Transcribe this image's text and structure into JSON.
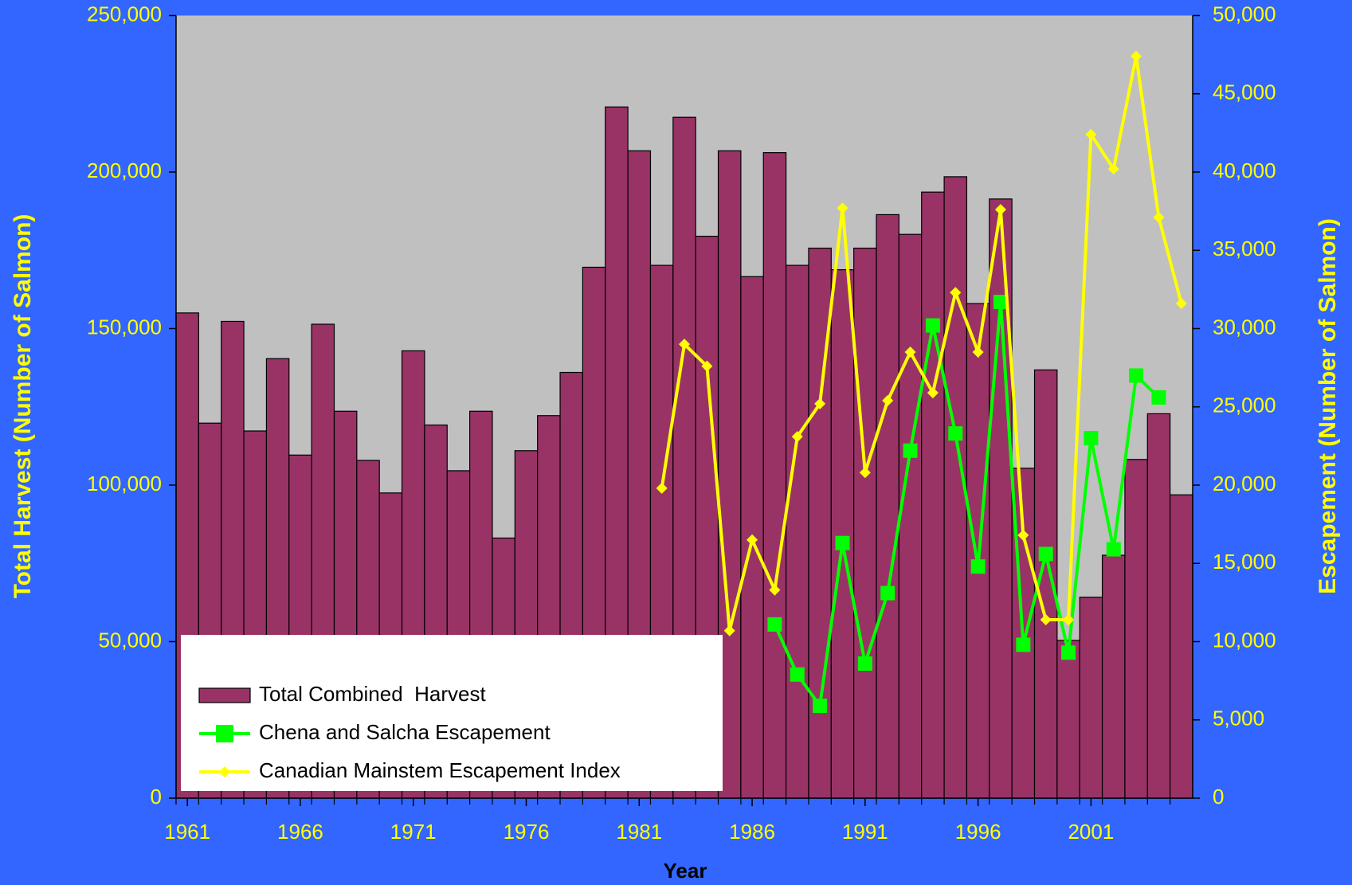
{
  "chart_data": {
    "type": "bar_line",
    "xlabel": "Year",
    "ylabel": "Total Harvest (Number of Salmon)",
    "y2label": "Escapement (Number of Salmon)",
    "x": [
      1961,
      1962,
      1963,
      1964,
      1965,
      1966,
      1967,
      1968,
      1969,
      1970,
      1971,
      1972,
      1973,
      1974,
      1975,
      1976,
      1977,
      1978,
      1979,
      1980,
      1981,
      1982,
      1983,
      1984,
      1985,
      1986,
      1987,
      1988,
      1989,
      1990,
      1991,
      1992,
      1993,
      1994,
      1995,
      1996,
      1997,
      1998,
      1999,
      2000,
      2001,
      2002,
      2003,
      2004,
      2005
    ],
    "xlim": [
      1960.5,
      2005.5
    ],
    "xticks": [
      1961,
      1966,
      1971,
      1976,
      1981,
      1986,
      1991,
      1996,
      2001
    ],
    "ylim": [
      0,
      250000
    ],
    "yticks": [
      0,
      {
        "value": 50000,
        "label": "50,000"
      },
      {
        "value": 100000,
        "label": "100,000"
      },
      {
        "value": 150000,
        "label": "150,000"
      },
      {
        "value": 200000,
        "label": "200,000"
      },
      {
        "value": 250000,
        "label": "250,000"
      }
    ],
    "y2lim": [
      0,
      50000
    ],
    "y2ticks": [
      0,
      {
        "value": 5000,
        "label": "5,000"
      },
      {
        "value": 10000,
        "label": "10,000"
      },
      {
        "value": 15000,
        "label": "15,000"
      },
      {
        "value": 20000,
        "label": "20,000"
      },
      {
        "value": 25000,
        "label": "25,000"
      },
      {
        "value": 30000,
        "label": "30,000"
      },
      {
        "value": 35000,
        "label": "35,000"
      },
      {
        "value": 40000,
        "label": "40,000"
      },
      {
        "value": 45000,
        "label": "45,000"
      },
      {
        "value": 50000,
        "label": "50,000"
      }
    ],
    "legend": "lower left",
    "series": [
      {
        "name": "Total Combined  Harvest",
        "kind": "bar",
        "axis": "y",
        "color": "#993366",
        "values": [
          155000,
          119800,
          152300,
          117300,
          140400,
          109600,
          151400,
          123600,
          107900,
          97500,
          142900,
          119200,
          104600,
          123600,
          83100,
          111000,
          122200,
          136000,
          169600,
          220800,
          206800,
          170200,
          217500,
          179500,
          206800,
          166600,
          206200,
          170200,
          175700,
          168800,
          175700,
          186400,
          180100,
          193600,
          198500,
          158000,
          191400,
          105400,
          136800,
          50400,
          64200,
          77600,
          108200,
          122800,
          96900
        ]
      },
      {
        "name": "Chena and Salcha Escapement",
        "kind": "line",
        "marker": "square",
        "axis": "y2",
        "color": "#00ff00",
        "values": [
          null,
          null,
          null,
          null,
          null,
          null,
          null,
          null,
          null,
          null,
          null,
          null,
          null,
          null,
          null,
          null,
          null,
          null,
          null,
          null,
          null,
          null,
          null,
          null,
          null,
          null,
          11100,
          7900,
          5900,
          16300,
          8600,
          13100,
          22200,
          30200,
          23300,
          14800,
          31700,
          9800,
          15600,
          9300,
          23000,
          15900,
          27000,
          25600,
          null
        ]
      },
      {
        "name": "Canadian Mainstem Escapement Index",
        "kind": "line",
        "marker": "diamond",
        "axis": "y2",
        "color": "#ffff00",
        "values": [
          null,
          null,
          null,
          null,
          null,
          null,
          null,
          null,
          null,
          null,
          null,
          null,
          null,
          null,
          null,
          null,
          null,
          null,
          null,
          null,
          null,
          19800,
          29000,
          27600,
          10700,
          16500,
          13300,
          23100,
          25200,
          37700,
          20800,
          25400,
          28500,
          25900,
          32300,
          28500,
          37600,
          16800,
          11400,
          11400,
          42400,
          40200,
          47400,
          37100,
          31600
        ]
      }
    ]
  }
}
